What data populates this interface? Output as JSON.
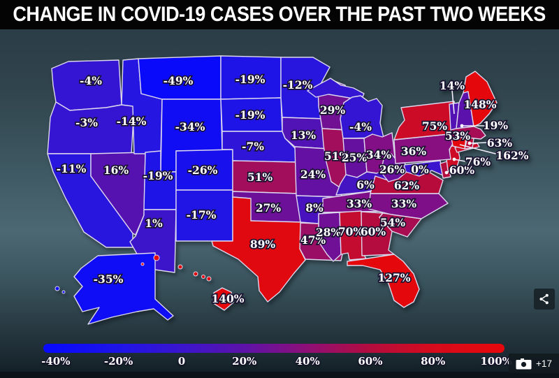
{
  "title": "CHANGE IN COVID-19 CASES OVER THE PAST TWO WEEKS",
  "chart_data": {
    "type": "choropleth_map",
    "region": "United States",
    "title": "Change in Covid-19 cases over the past two weeks",
    "value_unit": "percent change in cases",
    "legend": {
      "position": "bottom",
      "min": -40,
      "max": 100,
      "low_color": "#0a0afa",
      "mid_color": "#8e0f76",
      "high_color": "#e4080c",
      "ticks": [
        "-40%",
        "-20%",
        "0",
        "20%",
        "40%",
        "60%",
        "80%",
        "100%"
      ]
    },
    "states": [
      {
        "id": "WA",
        "name": "Washington",
        "label": "-4%",
        "value": -4
      },
      {
        "id": "OR",
        "name": "Oregon",
        "label": "-3%",
        "value": -3
      },
      {
        "id": "CA",
        "name": "California",
        "label": "-11%",
        "value": -11
      },
      {
        "id": "NV",
        "name": "Nevada",
        "label": "16%",
        "value": 16
      },
      {
        "id": "ID",
        "name": "Idaho",
        "label": "-14%",
        "value": -14
      },
      {
        "id": "MT",
        "name": "Montana",
        "label": "-49%",
        "value": -49
      },
      {
        "id": "WY",
        "name": "Wyoming",
        "label": "-34%",
        "value": -34
      },
      {
        "id": "UT",
        "name": "Utah",
        "label": "-19%",
        "value": -19
      },
      {
        "id": "CO",
        "name": "Colorado",
        "label": "-26%",
        "value": -26
      },
      {
        "id": "AZ",
        "name": "Arizona",
        "label": "1%",
        "value": 1
      },
      {
        "id": "NM",
        "name": "New Mexico",
        "label": "-17%",
        "value": -17
      },
      {
        "id": "ND",
        "name": "North Dakota",
        "label": "-19%",
        "value": -19
      },
      {
        "id": "SD",
        "name": "South Dakota",
        "label": "-19%",
        "value": -19
      },
      {
        "id": "NE",
        "name": "Nebraska",
        "label": "-7%",
        "value": -7
      },
      {
        "id": "KS",
        "name": "Kansas",
        "label": "51%",
        "value": 51
      },
      {
        "id": "OK",
        "name": "Oklahoma",
        "label": "27%",
        "value": 27
      },
      {
        "id": "TX",
        "name": "Texas",
        "label": "89%",
        "value": 89
      },
      {
        "id": "MN",
        "name": "Minnesota",
        "label": "-12%",
        "value": -12
      },
      {
        "id": "IA",
        "name": "Iowa",
        "label": "13%",
        "value": 13
      },
      {
        "id": "MO",
        "name": "Missouri",
        "label": "24%",
        "value": 24
      },
      {
        "id": "AR",
        "name": "Arkansas",
        "label": "8%",
        "value": 8
      },
      {
        "id": "LA",
        "name": "Louisiana",
        "label": "47%",
        "value": 47
      },
      {
        "id": "WI",
        "name": "Wisconsin",
        "label": "29%",
        "value": 29
      },
      {
        "id": "IL",
        "name": "Illinois",
        "label": "51%",
        "value": 51
      },
      {
        "id": "MS",
        "name": "Mississippi",
        "label": "28%",
        "value": 28
      },
      {
        "id": "MI",
        "name": "Michigan",
        "label": "-4%",
        "value": -4
      },
      {
        "id": "IN",
        "name": "Indiana",
        "label": "25%",
        "value": 25
      },
      {
        "id": "OH",
        "name": "Ohio",
        "label": "34%",
        "value": 34
      },
      {
        "id": "KY",
        "name": "Kentucky",
        "label": "6%",
        "value": 6
      },
      {
        "id": "TN",
        "name": "Tennessee",
        "label": "33%",
        "value": 33
      },
      {
        "id": "AL",
        "name": "Alabama",
        "label": "70%",
        "value": 70
      },
      {
        "id": "GA",
        "name": "Georgia",
        "label": "60%",
        "value": 60
      },
      {
        "id": "FL",
        "name": "Florida",
        "label": "127%",
        "value": 127
      },
      {
        "id": "SC",
        "name": "South Carolina",
        "label": "54%",
        "value": 54
      },
      {
        "id": "NC",
        "name": "North Carolina",
        "label": "33%",
        "value": 33
      },
      {
        "id": "VA",
        "name": "Virginia",
        "label": "62%",
        "value": 62
      },
      {
        "id": "WV",
        "name": "West Virginia",
        "label": "26%",
        "value": 26
      },
      {
        "id": "MD",
        "name": "Maryland",
        "label": "0%",
        "value": 0
      },
      {
        "id": "DE",
        "name": "Delaware",
        "label": "60%",
        "value": 60
      },
      {
        "id": "NJ",
        "name": "New Jersey",
        "label": "76%",
        "value": 76
      },
      {
        "id": "PA",
        "name": "Pennsylvania",
        "label": "36%",
        "value": 36
      },
      {
        "id": "NY",
        "name": "New York",
        "label": "75%",
        "value": 75
      },
      {
        "id": "VT",
        "name": "Vermont",
        "label": "14%",
        "value": 14
      },
      {
        "id": "NH",
        "name": "New Hampshire",
        "label": "19%",
        "value": 19
      },
      {
        "id": "ME",
        "name": "Maine",
        "label": "148%",
        "value": 148
      },
      {
        "id": "MA",
        "name": "Massachusetts",
        "label": "53%",
        "value": 53
      },
      {
        "id": "RI",
        "name": "Rhode Island",
        "label": "63%",
        "value": 63
      },
      {
        "id": "CT",
        "name": "Connecticut",
        "label": "162%",
        "value": 162
      },
      {
        "id": "AK",
        "name": "Alaska",
        "label": "-35%",
        "value": -35
      },
      {
        "id": "HI",
        "name": "Hawaii",
        "label": "140%",
        "value": 140
      }
    ]
  },
  "overlay": {
    "gallery_more": "+17"
  },
  "icons": {
    "share": "share-network-icon",
    "camera": "camera-icon"
  }
}
